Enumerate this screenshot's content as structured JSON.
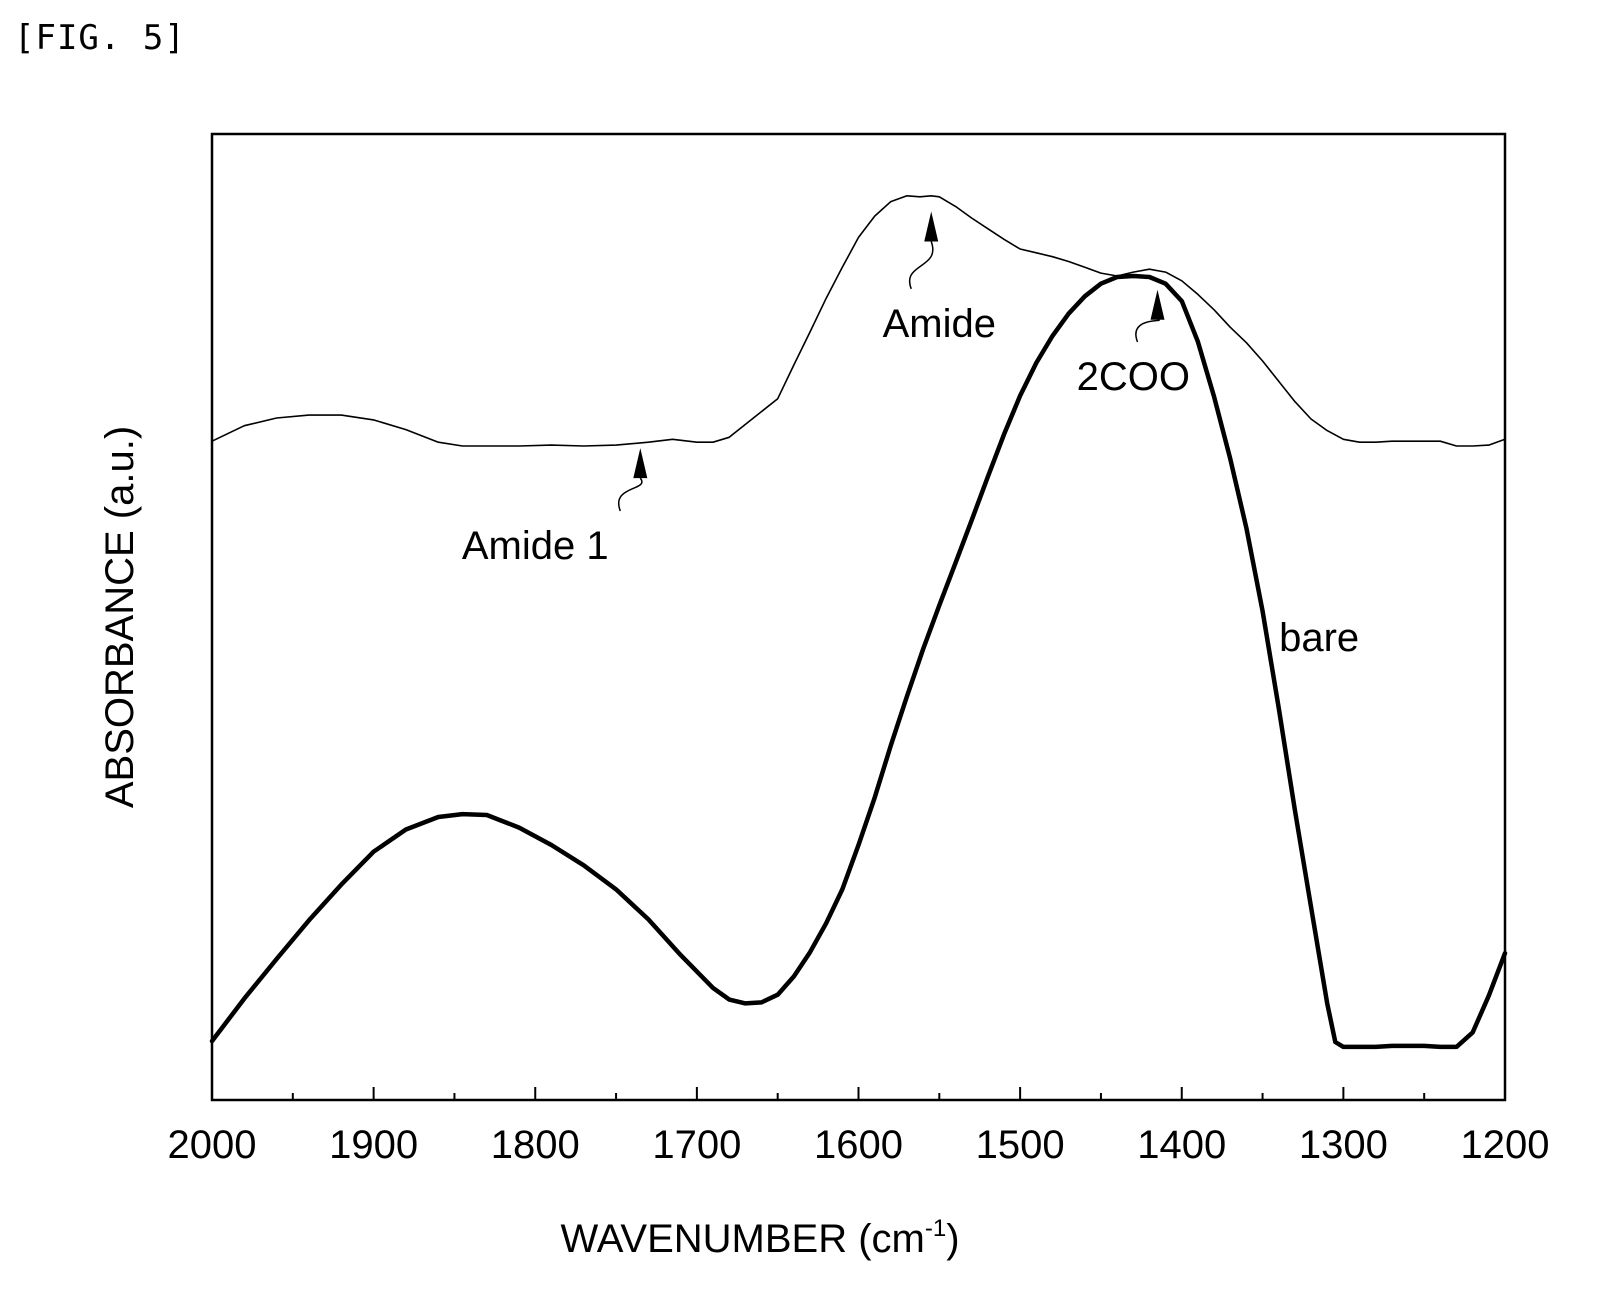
{
  "figure_label": "[FIG. 5]",
  "chart_data": {
    "type": "line",
    "xlabel": "WAVENUMBER (cm",
    "xlabel_superscript": "-1",
    "xlabel_suffix": ")",
    "ylabel": "ABSORBANCE (a.u.)",
    "xlim": [
      2000,
      1200
    ],
    "x_reversed": true,
    "ylim": [
      0,
      1
    ],
    "y_ticks_labeled": false,
    "x_ticks": [
      2000,
      1900,
      1800,
      1700,
      1600,
      1500,
      1400,
      1300,
      1200
    ],
    "x_minor_ticks": [
      1950,
      1850,
      1750,
      1650,
      1550,
      1450,
      1350,
      1250
    ],
    "grid": false,
    "series": [
      {
        "name": "",
        "style": "thin",
        "x": [
          2000,
          1980,
          1960,
          1940,
          1920,
          1900,
          1880,
          1860,
          1845,
          1830,
          1810,
          1790,
          1770,
          1750,
          1730,
          1715,
          1700,
          1690,
          1680,
          1665,
          1650,
          1640,
          1630,
          1620,
          1610,
          1600,
          1590,
          1580,
          1570,
          1562,
          1555,
          1550,
          1540,
          1530,
          1520,
          1510,
          1500,
          1490,
          1480,
          1470,
          1460,
          1450,
          1440,
          1430,
          1420,
          1410,
          1400,
          1390,
          1380,
          1370,
          1360,
          1350,
          1340,
          1330,
          1320,
          1310,
          1300,
          1290,
          1280,
          1270,
          1260,
          1250,
          1240,
          1230,
          1220,
          1210,
          1200
        ],
        "y": [
          0.682,
          0.698,
          0.706,
          0.709,
          0.709,
          0.704,
          0.694,
          0.681,
          0.677,
          0.677,
          0.677,
          0.678,
          0.677,
          0.678,
          0.681,
          0.684,
          0.681,
          0.681,
          0.686,
          0.706,
          0.726,
          0.761,
          0.795,
          0.83,
          0.862,
          0.893,
          0.915,
          0.93,
          0.936,
          0.935,
          0.936,
          0.935,
          0.925,
          0.913,
          0.902,
          0.891,
          0.881,
          0.877,
          0.873,
          0.868,
          0.862,
          0.856,
          0.853,
          0.857,
          0.86,
          0.857,
          0.848,
          0.834,
          0.818,
          0.8,
          0.784,
          0.765,
          0.744,
          0.723,
          0.705,
          0.693,
          0.684,
          0.681,
          0.681,
          0.682,
          0.682,
          0.682,
          0.682,
          0.677,
          0.677,
          0.678,
          0.684
        ]
      },
      {
        "name": "bare",
        "style": "thick",
        "x": [
          2000,
          1980,
          1960,
          1940,
          1920,
          1900,
          1880,
          1860,
          1845,
          1830,
          1810,
          1790,
          1770,
          1750,
          1730,
          1710,
          1690,
          1680,
          1670,
          1660,
          1650,
          1640,
          1630,
          1620,
          1610,
          1600,
          1590,
          1580,
          1570,
          1560,
          1550,
          1540,
          1530,
          1520,
          1510,
          1500,
          1490,
          1480,
          1470,
          1460,
          1450,
          1440,
          1430,
          1420,
          1410,
          1400,
          1390,
          1380,
          1370,
          1360,
          1350,
          1340,
          1330,
          1320,
          1310,
          1305,
          1300,
          1290,
          1280,
          1270,
          1260,
          1250,
          1240,
          1230,
          1220,
          1210,
          1200
        ],
        "y": [
          0.061,
          0.105,
          0.146,
          0.186,
          0.223,
          0.257,
          0.28,
          0.293,
          0.296,
          0.295,
          0.282,
          0.264,
          0.243,
          0.218,
          0.187,
          0.15,
          0.116,
          0.104,
          0.1,
          0.101,
          0.109,
          0.128,
          0.153,
          0.183,
          0.218,
          0.264,
          0.313,
          0.367,
          0.418,
          0.467,
          0.512,
          0.556,
          0.6,
          0.645,
          0.689,
          0.729,
          0.763,
          0.791,
          0.814,
          0.832,
          0.845,
          0.852,
          0.853,
          0.852,
          0.845,
          0.827,
          0.785,
          0.728,
          0.664,
          0.592,
          0.506,
          0.406,
          0.3,
          0.2,
          0.1,
          0.06,
          0.055,
          0.055,
          0.055,
          0.056,
          0.056,
          0.056,
          0.055,
          0.055,
          0.07,
          0.108,
          0.152
        ]
      }
    ],
    "annotations": [
      {
        "text": "Amide 1",
        "target_x": 1735,
        "target_y": 0.68,
        "label_x": 1800,
        "label_y": 0.56
      },
      {
        "text": "Amide",
        "target_x": 1555,
        "target_y": 0.925,
        "label_x": 1550,
        "label_y": 0.79
      },
      {
        "text": "2COO",
        "target_x": 1415,
        "target_y": 0.844,
        "label_x": 1430,
        "label_y": 0.735
      },
      {
        "text": "bare",
        "target_x": null,
        "target_y": null,
        "label_x": 1315,
        "label_y": 0.465
      }
    ]
  }
}
